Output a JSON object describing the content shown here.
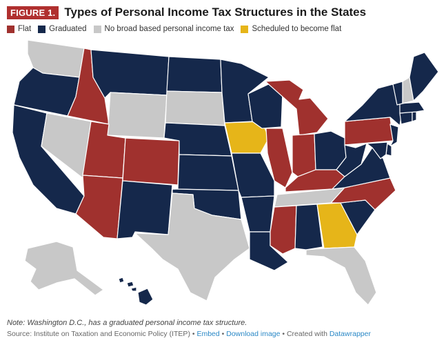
{
  "header": {
    "badge": "FIGURE 1.",
    "title": "Types of Personal Income Tax Structures in the States"
  },
  "legend": [
    {
      "label": "Flat",
      "color": "#a0312e"
    },
    {
      "label": "Graduated",
      "color": "#15284b"
    },
    {
      "label": "No broad based personal income tax",
      "color": "#c8c8c8"
    },
    {
      "label": "Scheduled to become flat",
      "color": "#e6b519"
    }
  ],
  "colors": {
    "flat": "#a0312e",
    "graduated": "#15284b",
    "none": "#c8c8c8",
    "scheduled": "#e6b519"
  },
  "footer": {
    "note": "Note: Washington D.C., has a graduated personal income tax structure.",
    "source_prefix": "Source: Institute on Taxation and Economic Policy (ITEP) • ",
    "embed": "Embed",
    "sep1": " • ",
    "download": "Download image",
    "created": " • Created with ",
    "datawrapper": "Datawrapper"
  },
  "states": {
    "WA": "none",
    "OR": "graduated",
    "CA": "graduated",
    "ID": "flat",
    "NV": "none",
    "MT": "graduated",
    "WY": "none",
    "UT": "flat",
    "AZ": "flat",
    "CO": "flat",
    "NM": "graduated",
    "ND": "graduated",
    "SD": "none",
    "NE": "graduated",
    "KS": "graduated",
    "OK": "graduated",
    "TX": "none",
    "MN": "graduated",
    "IA": "scheduled",
    "MO": "graduated",
    "AR": "graduated",
    "LA": "graduated",
    "WI": "graduated",
    "IL": "flat",
    "MI": "flat",
    "IN": "flat",
    "OH": "graduated",
    "KY": "flat",
    "TN": "none",
    "MS": "flat",
    "AL": "graduated",
    "GA": "scheduled",
    "FL": "none",
    "SC": "graduated",
    "NC": "flat",
    "VA": "graduated",
    "WV": "graduated",
    "PA": "flat",
    "NY": "graduated",
    "ME": "graduated",
    "NH": "none",
    "VT": "graduated",
    "MA": "graduated",
    "RI": "graduated",
    "CT": "graduated",
    "NJ": "graduated",
    "DE": "graduated",
    "MD": "graduated",
    "AK": "none",
    "HI": "graduated"
  }
}
